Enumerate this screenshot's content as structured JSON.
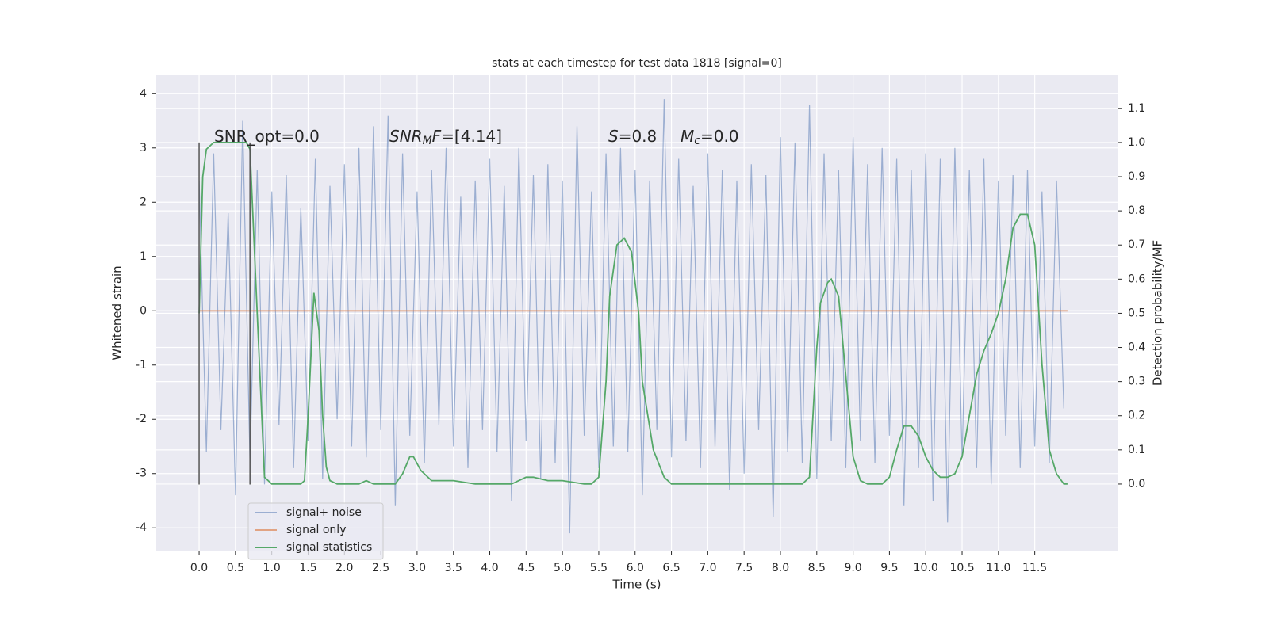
{
  "chart_data": {
    "type": "line",
    "title": "stats at each timestep for test data 1818 [signal=0]",
    "xlabel": "Time (s)",
    "ylabel": "Whitened strain",
    "y2label": "Detection probability/MF",
    "xlim": [
      -0.59,
      12.65
    ],
    "ylim": [
      -4.42,
      4.34
    ],
    "y2lim": [
      -0.195,
      1.197
    ],
    "grid": true,
    "legend": "lower left",
    "xticks": [
      {
        "value": 0,
        "label": "0.0"
      },
      0.5,
      {
        "value": 1,
        "label": "1.0"
      },
      1.5,
      {
        "value": 2,
        "label": "2.0"
      },
      2.5,
      {
        "value": 3,
        "label": "3.0"
      },
      3.5,
      {
        "value": 4,
        "label": "4.0"
      },
      4.5,
      {
        "value": 5,
        "label": "5.0"
      },
      5.5,
      {
        "value": 6,
        "label": "6.0"
      },
      6.5,
      {
        "value": 7,
        "label": "7.0"
      },
      7.5,
      {
        "value": 8,
        "label": "8.0"
      },
      8.5,
      {
        "value": 9,
        "label": "9.0"
      },
      9.5,
      {
        "value": 10,
        "label": "10.0"
      },
      10.5,
      {
        "value": 11,
        "label": "11.0"
      },
      11.5
    ],
    "yticks": [
      -4,
      -3,
      -2,
      -1,
      0,
      1,
      2,
      3,
      4
    ],
    "y2ticks": [
      {
        "value": 0,
        "label": "0.0"
      },
      0.1,
      0.2,
      0.3,
      0.4,
      0.5,
      0.6,
      0.7,
      0.8,
      0.9,
      {
        "value": 1,
        "label": "1.0"
      },
      1.1
    ],
    "vlines": {
      "x": [
        0,
        0.7
      ],
      "ymin": -3.2,
      "ymax": 3.1,
      "color": "#555555"
    },
    "annotations": [
      {
        "parts": [
          [
            "SNR_opt=0.0",
            ""
          ]
        ]
      },
      {
        "parts": [
          [
            "SNR",
            "i"
          ],
          [
            "M",
            "sub"
          ],
          [
            "F",
            "i"
          ],
          [
            "=[4.14]",
            ""
          ]
        ]
      },
      {
        "parts": [
          [
            "S",
            "i"
          ],
          [
            "=0.8",
            ""
          ]
        ]
      },
      {
        "parts": [
          [
            "M",
            "i"
          ],
          [
            "c",
            "sub"
          ],
          [
            "=0.0",
            ""
          ]
        ]
      }
    ],
    "series": [
      {
        "name": "signal+ noise",
        "color": "#4c72b0",
        "opacity": 0.5,
        "axis": "y",
        "x": [
          0.0,
          0.1,
          0.2,
          0.3,
          0.4,
          0.5,
          0.6,
          0.7,
          0.8,
          0.9,
          1.0,
          1.1,
          1.2,
          1.3,
          1.4,
          1.5,
          1.6,
          1.7,
          1.8,
          1.9,
          2.0,
          2.1,
          2.2,
          2.3,
          2.4,
          2.5,
          2.6,
          2.7,
          2.8,
          2.9,
          3.0,
          3.1,
          3.2,
          3.3,
          3.4,
          3.5,
          3.6,
          3.7,
          3.8,
          3.9,
          4.0,
          4.1,
          4.2,
          4.3,
          4.4,
          4.5,
          4.6,
          4.7,
          4.8,
          4.9,
          5.0,
          5.1,
          5.2,
          5.3,
          5.4,
          5.5,
          5.6,
          5.7,
          5.8,
          5.9,
          6.0,
          6.1,
          6.2,
          6.3,
          6.4,
          6.5,
          6.6,
          6.7,
          6.8,
          6.9,
          7.0,
          7.1,
          7.2,
          7.3,
          7.4,
          7.5,
          7.6,
          7.7,
          7.8,
          7.9,
          8.0,
          8.1,
          8.2,
          8.3,
          8.4,
          8.5,
          8.6,
          8.7,
          8.8,
          8.9,
          9.0,
          9.1,
          9.2,
          9.3,
          9.4,
          9.5,
          9.6,
          9.7,
          9.8,
          9.9,
          10.0,
          10.1,
          10.2,
          10.3,
          10.4,
          10.5,
          10.6,
          10.7,
          10.8,
          10.9,
          11.0,
          11.1,
          11.2,
          11.3,
          11.4,
          11.5,
          11.6,
          11.7,
          11.8,
          11.9
        ],
        "values": [
          2.4,
          -2.6,
          2.9,
          -2.2,
          1.8,
          -3.4,
          3.5,
          -2.8,
          2.6,
          -3.2,
          2.2,
          -2.1,
          2.5,
          -2.9,
          1.9,
          -2.4,
          2.8,
          -3.1,
          2.3,
          -2.0,
          2.7,
          -2.5,
          3.0,
          -2.7,
          3.4,
          -2.2,
          3.6,
          -3.6,
          2.9,
          -2.3,
          2.2,
          -2.8,
          2.6,
          -2.1,
          3.0,
          -2.5,
          2.1,
          -2.9,
          2.4,
          -2.2,
          2.8,
          -2.6,
          2.3,
          -3.5,
          3.0,
          -2.4,
          2.5,
          -3.1,
          2.7,
          -2.8,
          2.4,
          -4.1,
          3.4,
          -2.3,
          2.2,
          -2.9,
          2.9,
          -2.5,
          3.0,
          -2.6,
          2.6,
          -3.4,
          2.4,
          -2.2,
          3.9,
          -2.7,
          2.8,
          -2.4,
          2.3,
          -2.9,
          2.9,
          -2.5,
          2.6,
          -3.3,
          2.4,
          -3.0,
          2.7,
          -2.2,
          2.5,
          -3.8,
          3.2,
          -2.6,
          3.1,
          -2.8,
          3.8,
          -3.1,
          2.9,
          -2.4,
          2.6,
          -2.9,
          3.2,
          -2.4,
          2.7,
          -2.8,
          3.0,
          -2.3,
          2.8,
          -3.6,
          2.6,
          -2.9,
          2.9,
          -3.5,
          2.8,
          -3.9,
          3.0,
          -2.7,
          2.6,
          -2.9,
          2.8,
          -3.2,
          2.4,
          -2.3,
          2.5,
          -2.9,
          2.6,
          -2.5,
          2.2,
          -2.8,
          2.4,
          -1.8
        ]
      },
      {
        "name": "signal only",
        "color": "#dd8452",
        "opacity": 0.7,
        "axis": "y",
        "x": [
          0,
          11.95
        ],
        "values": [
          0,
          0
        ]
      },
      {
        "name": "signal statistics",
        "color": "#55a868",
        "opacity": 1,
        "axis": "y2",
        "x": [
          0,
          0.05,
          0.1,
          0.2,
          0.5,
          0.65,
          0.7,
          0.8,
          0.9,
          1.0,
          1.4,
          1.45,
          1.5,
          1.58,
          1.65,
          1.7,
          1.75,
          1.8,
          1.9,
          2.2,
          2.3,
          2.4,
          2.7,
          2.8,
          2.9,
          2.95,
          3.05,
          3.2,
          3.5,
          3.8,
          4.3,
          4.5,
          4.6,
          4.8,
          5.0,
          5.3,
          5.4,
          5.5,
          5.6,
          5.65,
          5.75,
          5.85,
          5.95,
          6.05,
          6.1,
          6.25,
          6.4,
          6.5,
          8.3,
          8.4,
          8.5,
          8.55,
          8.65,
          8.7,
          8.8,
          8.95,
          9.0,
          9.1,
          9.2,
          9.4,
          9.5,
          9.6,
          9.7,
          9.8,
          9.9,
          10.0,
          10.1,
          10.2,
          10.3,
          10.4,
          10.5,
          10.6,
          10.7,
          10.8,
          10.9,
          11.0,
          11.1,
          11.2,
          11.3,
          11.4,
          11.5,
          11.6,
          11.7,
          11.8,
          11.9,
          11.95
        ],
        "values": [
          0.5,
          0.9,
          0.98,
          1.0,
          1.0,
          1.0,
          0.98,
          0.5,
          0.02,
          0.0,
          0.0,
          0.01,
          0.2,
          0.56,
          0.45,
          0.2,
          0.05,
          0.01,
          0.0,
          0.0,
          0.01,
          0.0,
          0.0,
          0.03,
          0.08,
          0.08,
          0.04,
          0.01,
          0.01,
          0.0,
          0.0,
          0.02,
          0.02,
          0.01,
          0.01,
          0.0,
          0.0,
          0.02,
          0.3,
          0.55,
          0.7,
          0.72,
          0.68,
          0.5,
          0.3,
          0.1,
          0.02,
          0.0,
          0.0,
          0.02,
          0.4,
          0.53,
          0.59,
          0.6,
          0.55,
          0.2,
          0.08,
          0.01,
          0.0,
          0.0,
          0.02,
          0.1,
          0.17,
          0.17,
          0.14,
          0.08,
          0.04,
          0.02,
          0.02,
          0.03,
          0.08,
          0.2,
          0.32,
          0.39,
          0.44,
          0.5,
          0.6,
          0.75,
          0.79,
          0.79,
          0.7,
          0.35,
          0.1,
          0.03,
          0.0,
          0.0
        ]
      }
    ]
  }
}
